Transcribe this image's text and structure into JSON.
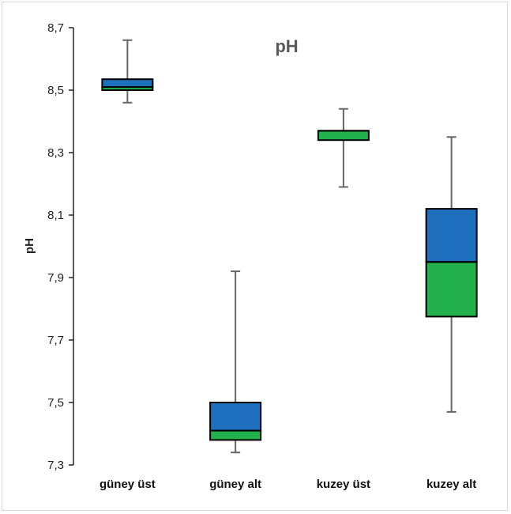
{
  "chart_data": {
    "type": "boxplot",
    "title": "pH",
    "ylabel": "pH",
    "xlabel": "",
    "ylim": [
      7.3,
      8.7
    ],
    "yticks": [
      7.3,
      7.5,
      7.7,
      7.9,
      8.1,
      8.3,
      8.5,
      8.7
    ],
    "ytick_labels": [
      "7,3",
      "7,5",
      "7,7",
      "7,9",
      "8,1",
      "8,3",
      "8,5",
      "8,7"
    ],
    "grid": false,
    "legend": "none",
    "colors": {
      "upper_box": "#1f6fbf",
      "lower_box": "#22b14c",
      "whisker": "#666666",
      "axis": "#222222"
    },
    "categories": [
      "güney üst",
      "güney alt",
      "kuzey üst",
      "kuzey alt"
    ],
    "boxes": [
      {
        "min": 8.46,
        "q1": 8.5,
        "median": 8.51,
        "q3": 8.535,
        "max": 8.66
      },
      {
        "min": 7.34,
        "q1": 7.38,
        "median": 7.41,
        "q3": 7.5,
        "max": 7.92
      },
      {
        "min": 8.19,
        "q1": 8.34,
        "median": 8.37,
        "q3": 8.37,
        "max": 8.44
      },
      {
        "min": 7.47,
        "q1": 7.775,
        "median": 7.95,
        "q3": 8.12,
        "max": 8.35
      }
    ]
  }
}
